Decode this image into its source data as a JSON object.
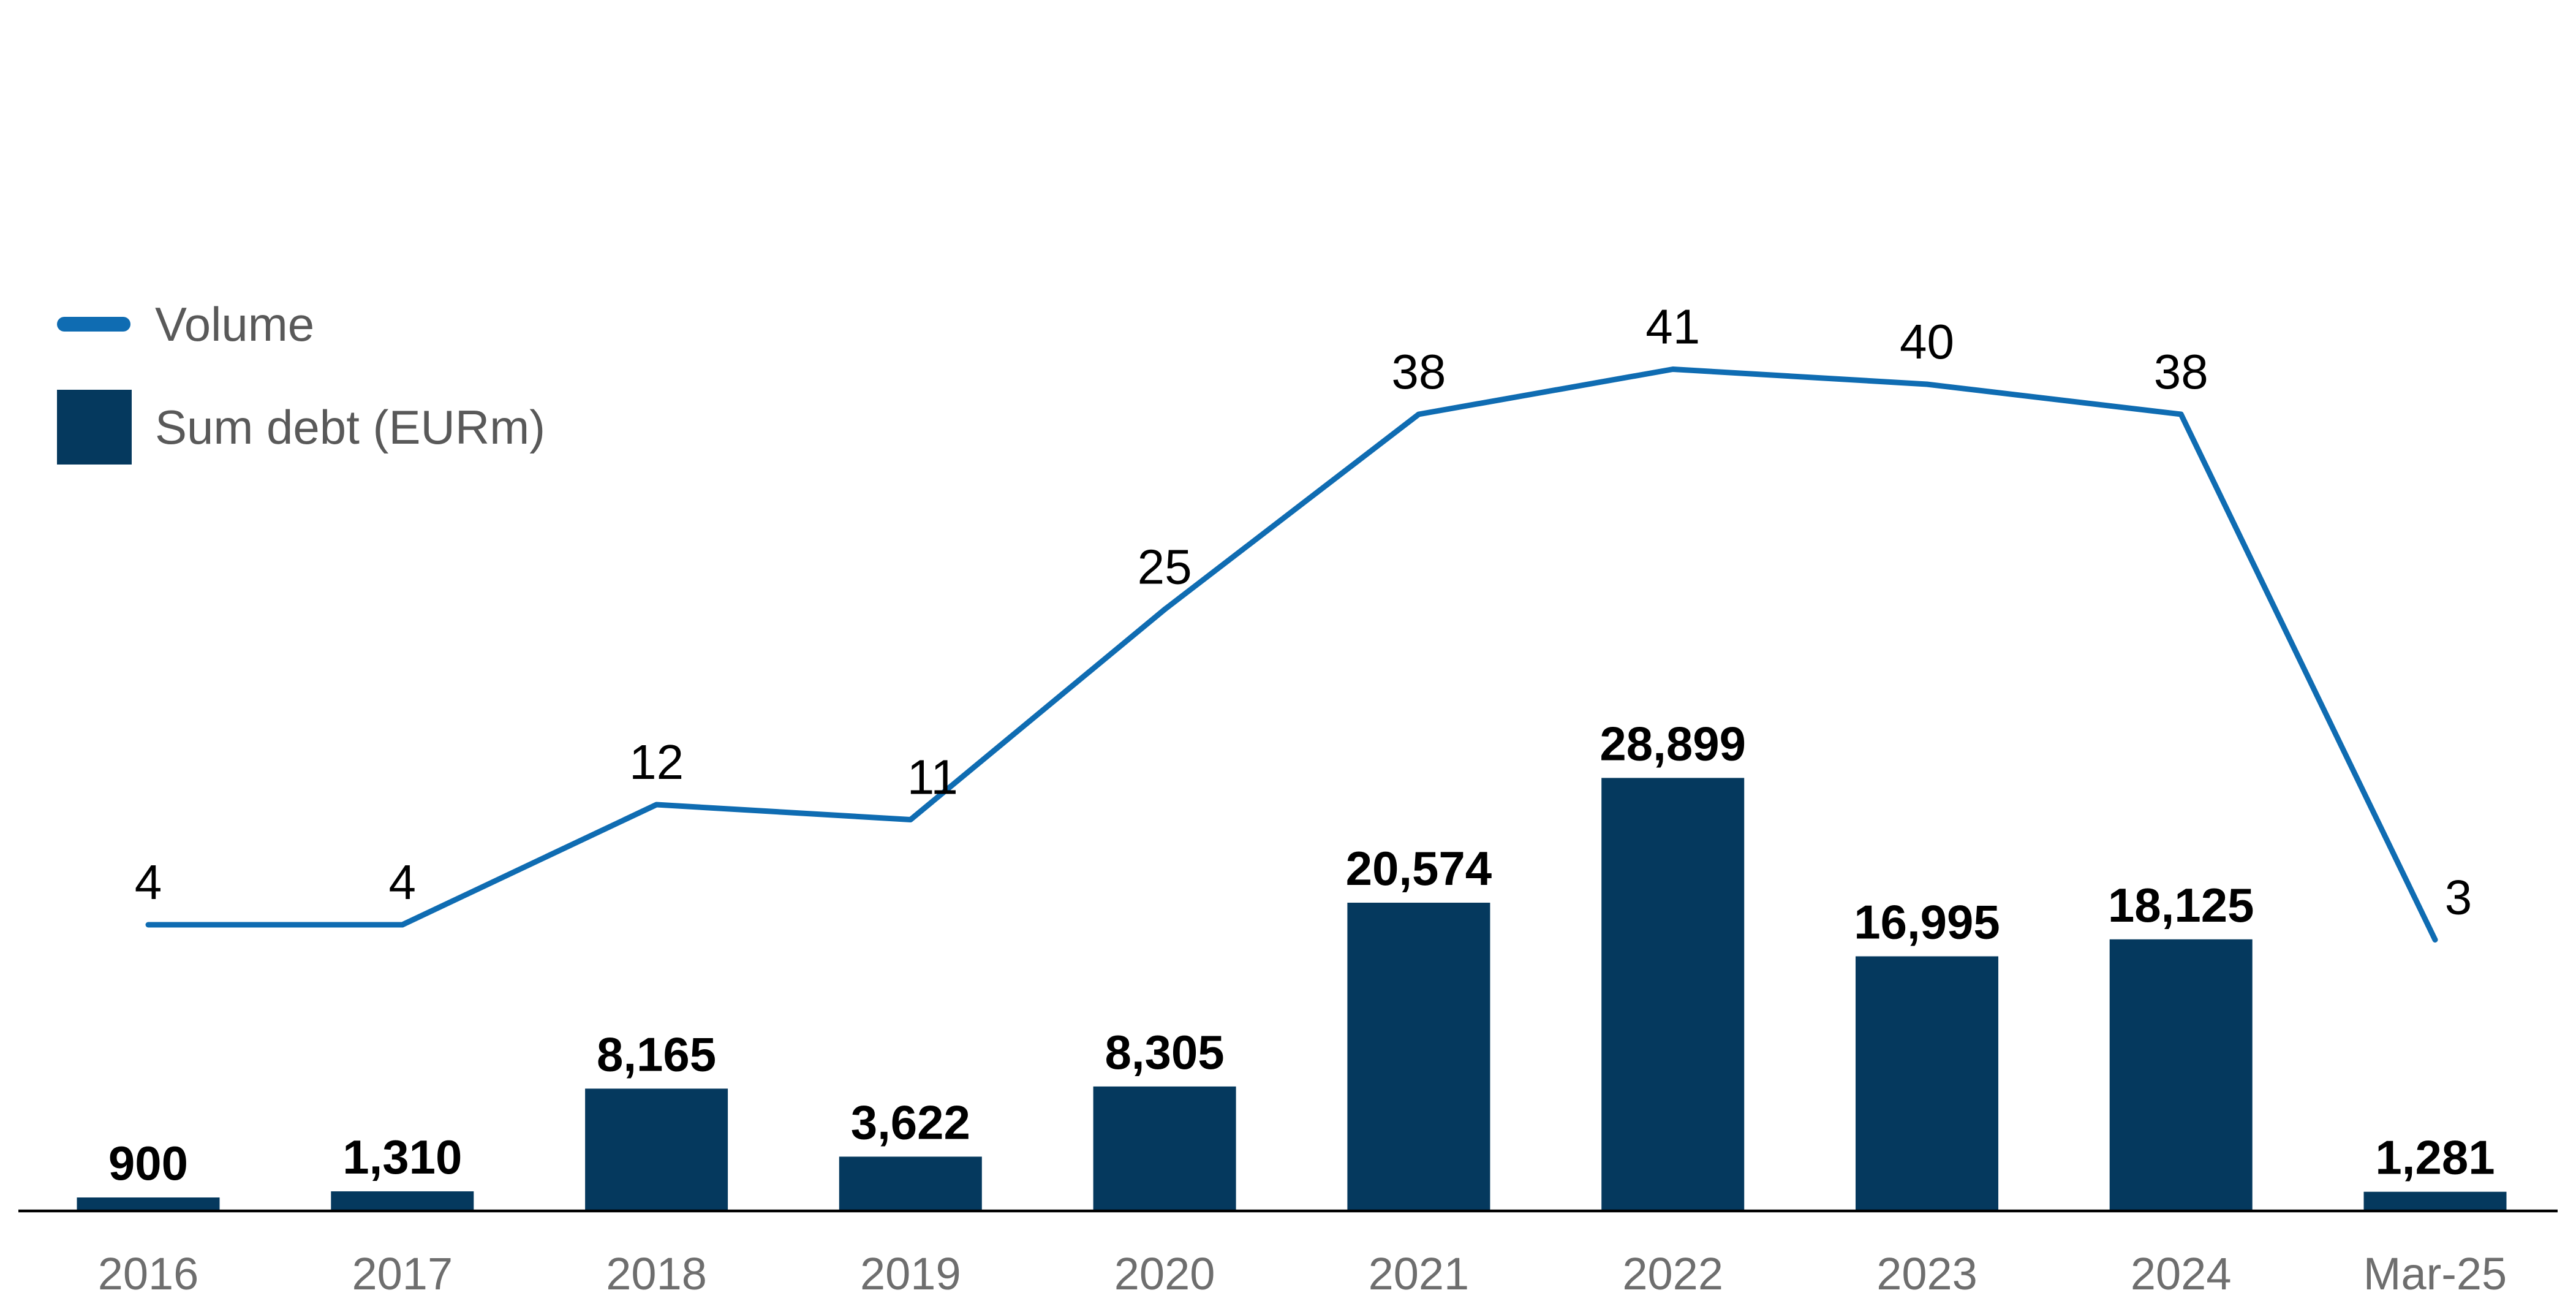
{
  "legend": {
    "volume_label": "Volume",
    "sum_debt_label": "Sum debt (EURm)"
  },
  "colors": {
    "line_blue": "#0F6CB2",
    "bar_navy": "#05395E",
    "axis_black": "#000000",
    "category_gray": "#6E6E6E",
    "legend_text_gray": "#595959",
    "value_label_black": "#000000",
    "background": "#FFFFFF"
  },
  "chart_data": {
    "type": "bar",
    "subtype": "bar-with-line-dual-axis",
    "title": "",
    "xlabel": "",
    "ylabel": "",
    "grid": false,
    "y_axis_ticks_shown": false,
    "value_labels_shown": true,
    "legend_position": "top-left",
    "categories": [
      "2016",
      "2017",
      "2018",
      "2019",
      "2020",
      "2021",
      "2022",
      "2023",
      "2024",
      "Mar-25"
    ],
    "series": [
      {
        "name": "Volume",
        "type": "line",
        "values": [
          4,
          4,
          12,
          11,
          25,
          38,
          41,
          40,
          38,
          3
        ],
        "labels": [
          "4",
          "4",
          "12",
          "11",
          "25",
          "38",
          "41",
          "40",
          "38",
          "3"
        ]
      },
      {
        "name": "Sum debt (EURm)",
        "type": "bar",
        "values": [
          900,
          1310,
          8165,
          3622,
          8305,
          20574,
          28899,
          16995,
          18125,
          1281
        ],
        "labels": [
          "900",
          "1,310",
          "8,165",
          "3,622",
          "8,305",
          "20,574",
          "28,899",
          "16,995",
          "18,125",
          "1,281"
        ]
      }
    ]
  }
}
